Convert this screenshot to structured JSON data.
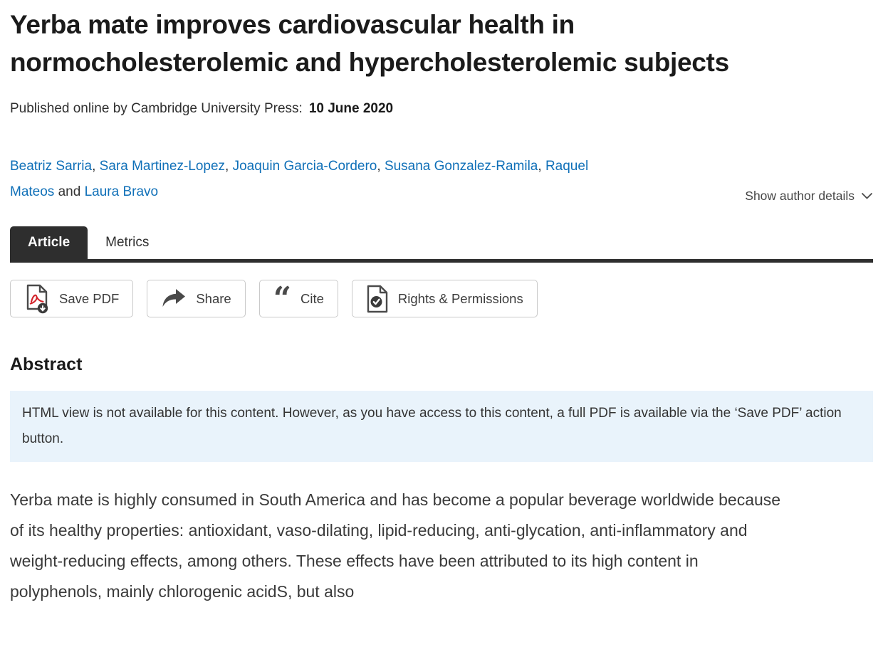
{
  "page": {
    "title": "Yerba mate improves cardiovascular health in normocholesterolemic and hypercholesterolemic subjects",
    "published_label": "Published online by Cambridge University Press:",
    "published_date": "10 June 2020"
  },
  "authors": {
    "names": [
      "Beatriz Sarria",
      "Sara Martinez-Lopez",
      "Joaquin Garcia-Cordero",
      "Susana Gonzalez-Ramila",
      "Raquel Mateos",
      "Laura Bravo"
    ],
    "separator": ",  ",
    "last_separator": " and ",
    "details_toggle": "Show author details"
  },
  "tabs": [
    {
      "label": "Article",
      "active": true
    },
    {
      "label": "Metrics",
      "active": false
    }
  ],
  "actions": {
    "save_pdf": "Save PDF",
    "share": "Share",
    "cite": "Cite",
    "rights": "Rights & Permissions"
  },
  "icons": {
    "save_pdf": "pdf-document-download-icon",
    "share": "share-arrow-icon",
    "cite": "double-quote-icon",
    "rights": "document-check-icon",
    "author_details": "chevron-down-icon"
  },
  "abstract": {
    "heading": "Abstract",
    "notice": "HTML view is not available for this content. However, as you have access to this content, a full PDF is available via the ‘Save PDF’ action button.",
    "body": "Yerba mate is highly consumed in South America and has become a popular beverage worldwide because of its healthy properties: antioxidant, vaso-dilating, lipid-reducing, anti-glycation, anti-inflammatory and weight-reducing effects, among others. These effects have been attributed to its high content in polyphenols, mainly chlorogenic acidS, but also"
  },
  "colors": {
    "link": "#1070b8",
    "tab_active_bg": "#2e2e2e",
    "notice_bg": "#e9f3fb",
    "pdf_red": "#d2232a",
    "icon_gray": "#4a4a4a",
    "text_dark": "#1b1b1b",
    "text_body": "#3a3a3a",
    "button_border": "#c9c9c9"
  }
}
